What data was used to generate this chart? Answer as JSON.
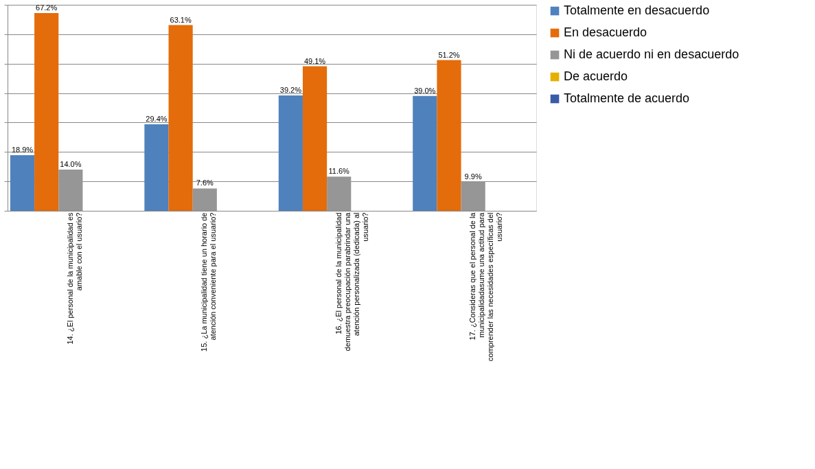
{
  "chart_data": {
    "type": "bar",
    "categories": [
      "14. ¿El personal de la municipalidad es amable con el usuario?",
      "15. ¿La municipalidad tiene un horario de atención conveniente para el usuario?",
      "16. ¿El personal de la municipalidad demuestra preocupación parabrindar una atención personalizada (dedicada) al usuario?",
      "17. ¿Consideras que el personal de la municipalidadasume una actitud para comprender las necesidades específicas del usuario?"
    ],
    "series": [
      {
        "name": "Totalmente en desacuerdo",
        "color": "#4f81bd",
        "values": [
          18.9,
          29.4,
          39.2,
          39.0
        ],
        "value_labels": [
          "18.9%",
          "29.4%",
          "39.2%",
          "39.0%"
        ]
      },
      {
        "name": "En desacuerdo",
        "color": "#e46c0a",
        "values": [
          67.2,
          63.1,
          49.1,
          51.2
        ],
        "value_labels": [
          "67.2%",
          "63.1%",
          "49.1%",
          "51.2%"
        ]
      },
      {
        "name": "Ni de acuerdo ni en desacuerdo",
        "color": "#969696",
        "values": [
          14.0,
          7.6,
          11.6,
          9.9
        ],
        "value_labels": [
          "14.0%",
          "7.6%",
          "11.6%",
          "9.9%"
        ]
      },
      {
        "name": "De acuerdo",
        "color": "#e6b000",
        "values": [
          null,
          null,
          null,
          null
        ]
      },
      {
        "name": "Totalmente de acuerdo",
        "color": "#3a5ba8",
        "values": [
          null,
          null,
          null,
          null
        ]
      }
    ],
    "grid": "y",
    "legend": "right",
    "tick_labels": "x"
  }
}
